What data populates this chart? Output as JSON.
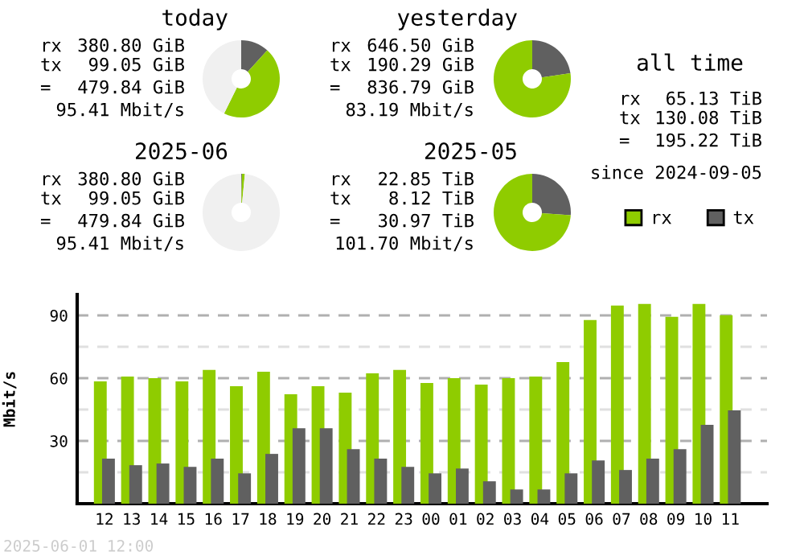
{
  "chart_data": [
    {
      "type": "donut",
      "title": "today",
      "categories": [
        null,
        null,
        null
      ],
      "values": [
        11.8,
        45.5,
        42.7
      ],
      "colors": [
        "#606060",
        "#8fcc00",
        "#f0f0f0"
      ],
      "annotations": [
        "rx",
        "380.80 GiB",
        "tx",
        "99.05 GiB",
        "=",
        "479.84 GiB",
        "95.41 Mbit/s"
      ]
    },
    {
      "type": "donut",
      "title": "yesterday",
      "categories": [
        null,
        null
      ],
      "values": [
        22.7,
        77.3
      ],
      "colors": [
        "#606060",
        "#8fcc00"
      ],
      "annotations": [
        "rx",
        "646.50 GiB",
        "tx",
        "190.29 GiB",
        "=",
        "836.79 GiB",
        "83.19 Mbit/s"
      ]
    },
    {
      "type": "other",
      "title": "all time",
      "annotations": [
        "rx",
        "65.13 TiB",
        "tx",
        "130.08 TiB",
        "=",
        "195.22 TiB",
        "since 2024-09-05"
      ]
    },
    {
      "type": "donut",
      "title": "2025-06",
      "categories": [
        null,
        null,
        null
      ],
      "values": [
        0.31,
        1.2,
        98.49
      ],
      "colors": [
        "#606060",
        "#8fcc00",
        "#f0f0f0"
      ],
      "annotations": [
        "rx",
        "380.80 GiB",
        "tx",
        "99.05 GiB",
        "=",
        "479.84 GiB",
        "95.41 Mbit/s"
      ]
    },
    {
      "type": "donut",
      "title": "2025-05",
      "categories": [
        null,
        null
      ],
      "values": [
        26.2,
        73.8
      ],
      "colors": [
        "#606060",
        "#8fcc00"
      ],
      "annotations": [
        "rx",
        "22.85 TiB",
        "tx",
        "8.12 TiB",
        "=",
        "30.97 TiB",
        "101.70 Mbit/s"
      ]
    },
    {
      "type": "bar",
      "ylabel": "Mbit/s",
      "categories": [
        "12",
        "13",
        "14",
        "15",
        "16",
        "17",
        "18",
        "19",
        "20",
        "21",
        "22",
        "23",
        "00",
        "01",
        "02",
        "03",
        "04",
        "05",
        "06",
        "07",
        "08",
        "09",
        "10",
        "11"
      ],
      "series": [
        {
          "name": "rx",
          "color": "#8fcc00",
          "values": [
            58.5,
            60.8,
            60.0,
            58.5,
            63.9,
            56.2,
            63.1,
            52.3,
            56.2,
            53.1,
            62.3,
            63.9,
            57.7,
            60.0,
            56.9,
            60.0,
            60.8,
            67.7,
            87.8,
            94.7,
            95.5,
            89.3,
            95.5,
            90.1
          ]
        },
        {
          "name": "tx",
          "color": "#606060",
          "values": [
            21.5,
            18.4,
            19.2,
            17.6,
            21.5,
            14.5,
            23.8,
            36.1,
            36.1,
            26.1,
            21.5,
            17.6,
            14.5,
            16.8,
            10.7,
            6.8,
            6.8,
            14.5,
            20.7,
            16.1,
            21.5,
            26.1,
            37.7,
            44.6
          ]
        }
      ],
      "ylim": [
        0,
        100
      ],
      "yticks": [
        {
          "value": 15,
          "label": null
        },
        30,
        {
          "value": 45,
          "label": null
        },
        60,
        {
          "value": 75,
          "label": null
        },
        90
      ],
      "grid": "y",
      "legend": "top right",
      "annotations": [
        "2025-06-01 12:00"
      ]
    }
  ]
}
